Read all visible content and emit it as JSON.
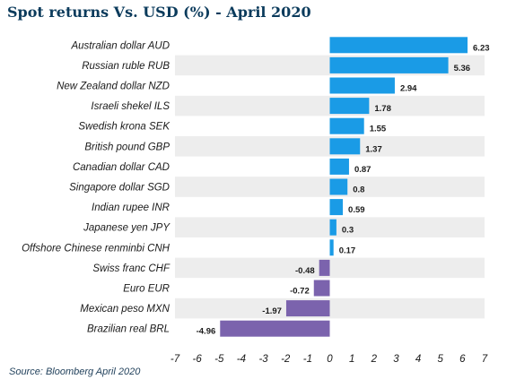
{
  "title": "Spot returns Vs. USD (%) -  April 2020",
  "source": "Source: Bloomberg April 2020",
  "colors": {
    "positive": "#1a9be6",
    "negative": "#7b63ad",
    "stripe": "#ededed",
    "title": "#0b3b5c"
  },
  "chart_data": {
    "type": "bar",
    "orientation": "horizontal",
    "categories": [
      "Australian dollar AUD",
      "Russian ruble RUB",
      "New Zealand dollar NZD",
      "Israeli shekel ILS",
      "Swedish krona SEK",
      "British pound GBP",
      "Canadian dollar CAD",
      "Singapore dollar SGD",
      "Indian rupee INR",
      "Japanese yen JPY",
      "Offshore Chinese renminbi CNH",
      "Swiss franc CHF",
      "Euro EUR",
      "Mexican peso MXN",
      "Brazilian real BRL"
    ],
    "values": [
      6.23,
      5.36,
      2.94,
      1.78,
      1.55,
      1.37,
      0.87,
      0.8,
      0.59,
      0.3,
      0.17,
      -0.48,
      -0.72,
      -1.97,
      -4.96
    ],
    "value_labels": [
      "6.23",
      "5.36",
      "2.94",
      "1.78",
      "1.55",
      "1.37",
      "0.87",
      "0.8",
      "0.59",
      "0.3",
      "0.17",
      "-0.48",
      "-0.72",
      "-1.97",
      "-4.96"
    ],
    "xlim": [
      -7,
      7
    ],
    "xticks": [
      "-7",
      "-6",
      "-5",
      "-4",
      "-3",
      "-2",
      "-1",
      "0",
      "1",
      "2",
      "3",
      "4",
      "5",
      "6",
      "7"
    ],
    "title": "Spot returns Vs. USD (%) -  April 2020",
    "grid": false,
    "legend": "none"
  }
}
